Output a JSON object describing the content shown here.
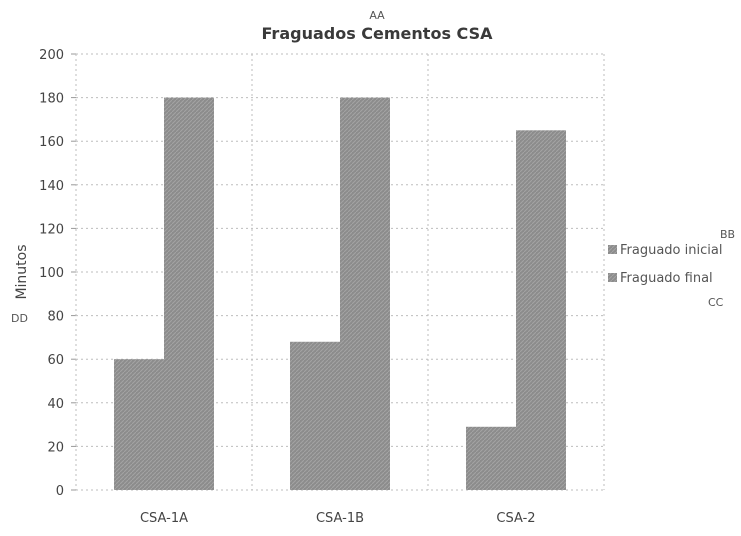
{
  "chart_data": {
    "type": "bar",
    "title": "Fraguados Cementos CSA",
    "ylabel": "Minutos",
    "xlabel": "",
    "ylim": [
      0,
      200
    ],
    "yticks": [
      0,
      20,
      40,
      60,
      80,
      100,
      120,
      140,
      160,
      180,
      200
    ],
    "ytick_labels": [
      "0",
      "20",
      "40",
      "60",
      "80",
      "100",
      "120",
      "140",
      "160",
      "180",
      "200"
    ],
    "categories": [
      "CSA-1A",
      "CSA-1B",
      "CSA-2"
    ],
    "series": [
      {
        "name": "Fraguado inicial",
        "values": [
          60,
          68,
          29
        ]
      },
      {
        "name": "Fraguado final",
        "values": [
          180,
          180,
          165
        ]
      }
    ],
    "grid": true,
    "legend_position": "right",
    "bar_color": "#8e8e8e"
  },
  "annotations": {
    "aa": "AA",
    "bb": "BB",
    "cc": "CC",
    "dd": "DD"
  }
}
